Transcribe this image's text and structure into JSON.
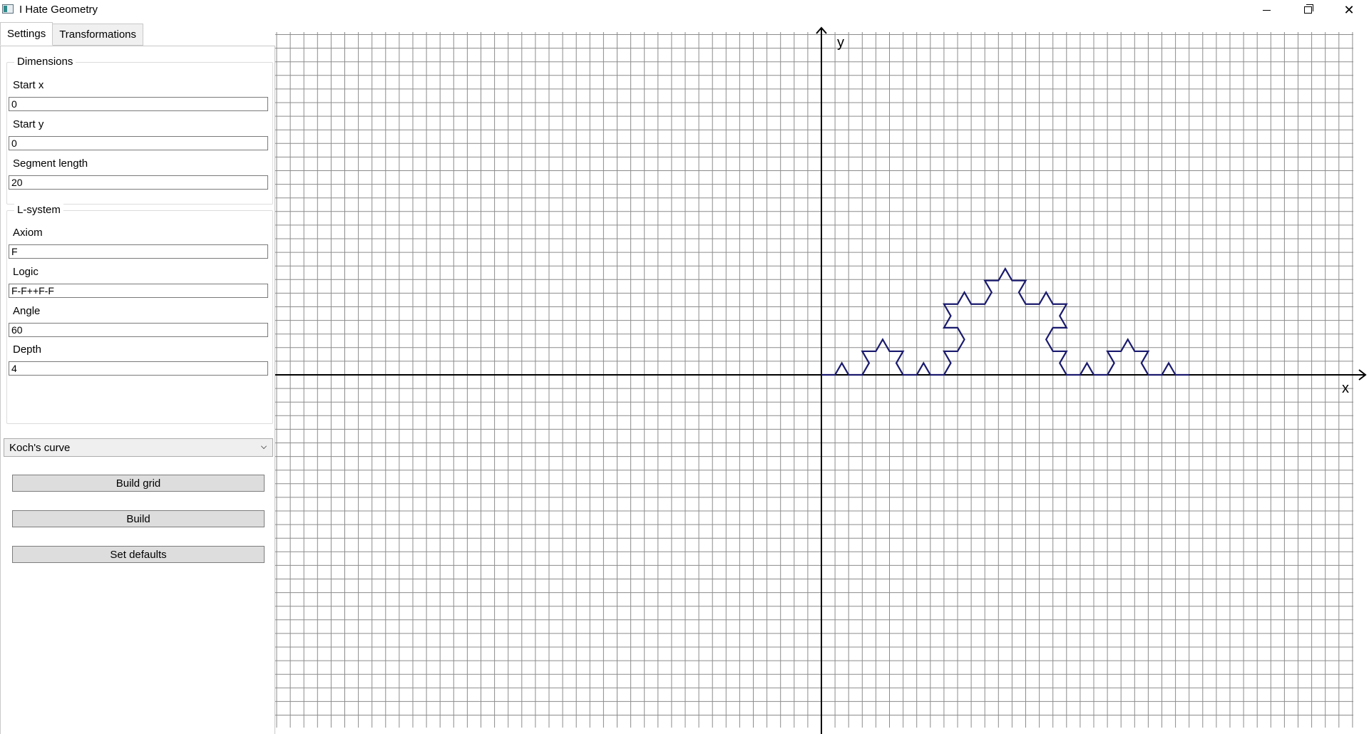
{
  "window": {
    "title": "I Hate Geometry"
  },
  "tabs": [
    {
      "label": "Settings",
      "active": true
    },
    {
      "label": "Transformations",
      "active": false
    }
  ],
  "dimensions": {
    "group_title": "Dimensions",
    "start_x": {
      "label": "Start x",
      "value": "0"
    },
    "start_y": {
      "label": "Start y",
      "value": "0"
    },
    "segment_length": {
      "label": "Segment length",
      "value": "20"
    }
  },
  "lsystem": {
    "group_title": "L-system",
    "axiom": {
      "label": "Axiom",
      "value": "F"
    },
    "logic": {
      "label": "Logic",
      "value": "F-F++F-F"
    },
    "angle": {
      "label": "Angle",
      "value": "60"
    },
    "depth": {
      "label": "Depth",
      "value": "4"
    }
  },
  "preset": {
    "selected": "Koch's curve"
  },
  "buttons": {
    "build_grid": "Build grid",
    "build": "Build",
    "set_defaults": "Set defaults"
  },
  "plot": {
    "x_axis_label": "x",
    "y_axis_label": "y",
    "curve": {
      "type": "koch",
      "iterations": 3,
      "start": [
        0,
        0
      ],
      "length_in_grid_units": 27,
      "color": "#1a1a6e"
    },
    "grid_color": "#8c8c8c",
    "axis_color": "#000000"
  }
}
